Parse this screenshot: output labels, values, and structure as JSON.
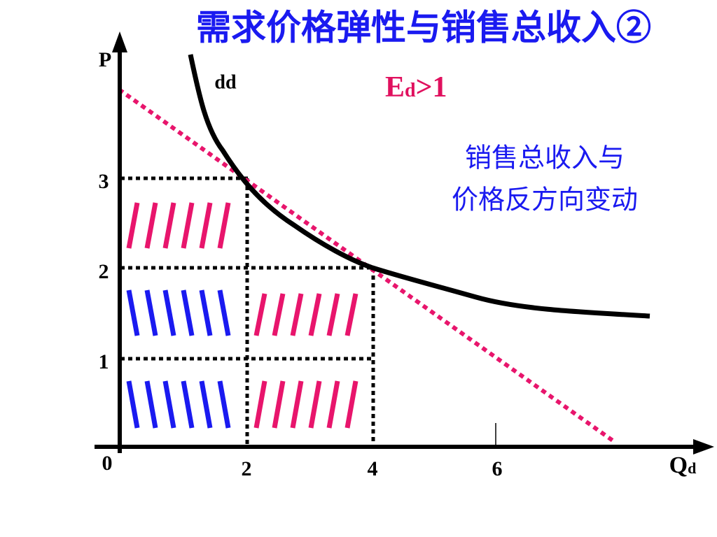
{
  "title": "需求价格弹性与销售总收入②",
  "axes": {
    "y_label": "P",
    "x_label": "Q",
    "x_label_sub": "d",
    "origin": "0"
  },
  "y_ticks": [
    3,
    2,
    1
  ],
  "x_ticks": [
    2,
    4,
    6
  ],
  "curve_label": "dd",
  "elasticity": {
    "symbol": "E",
    "sub": "d",
    "relation": ">1"
  },
  "note": [
    "销售总收入与",
    "价格反方向变动"
  ]
}
